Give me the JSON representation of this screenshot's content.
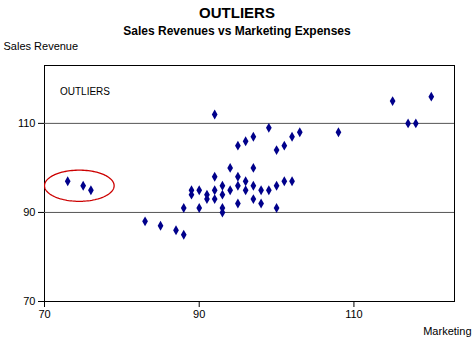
{
  "chart_data": {
    "type": "scatter",
    "title": "OUTLIERS",
    "subtitle": "Sales Revenues vs Marketing Expenses",
    "xlabel": "Marketing",
    "ylabel": "Sales Revenue",
    "color": "#00008B",
    "marker": "diamond",
    "x": [
      73,
      75,
      76,
      83,
      85,
      87,
      88,
      88,
      89,
      89,
      90,
      90,
      91,
      91,
      92,
      92,
      92,
      92,
      93,
      93,
      93,
      93,
      94,
      94,
      95,
      95,
      95,
      95,
      96,
      96,
      96,
      97,
      97,
      97,
      97,
      98,
      98,
      99,
      99,
      100,
      100,
      100,
      101,
      101,
      102,
      102,
      103,
      108,
      115,
      117,
      118,
      120
    ],
    "values": [
      97,
      96,
      95,
      88,
      87,
      86,
      85,
      91,
      95,
      94,
      91,
      95,
      94,
      93,
      93,
      95,
      98,
      112,
      94,
      96,
      91,
      90,
      95,
      100,
      92,
      96,
      98,
      105,
      95,
      97,
      106,
      93,
      96,
      100,
      107,
      92,
      95,
      95,
      109,
      91,
      96,
      104,
      97,
      105,
      97,
      107,
      108,
      108,
      115,
      110,
      110,
      116
    ],
    "xlim": [
      70,
      123
    ],
    "ylim": [
      70,
      123
    ],
    "xticks": [
      70,
      90,
      110
    ],
    "yticks": [
      70,
      90,
      110
    ],
    "hlines": [
      90,
      110
    ],
    "highlight": {
      "center": [
        74.5,
        96
      ],
      "radius_x": 4.5,
      "radius_y": 3.5,
      "color": "#cc0000"
    },
    "annotations": [
      {
        "text": "OUTLIERS",
        "x": 72,
        "y": 118
      }
    ]
  }
}
